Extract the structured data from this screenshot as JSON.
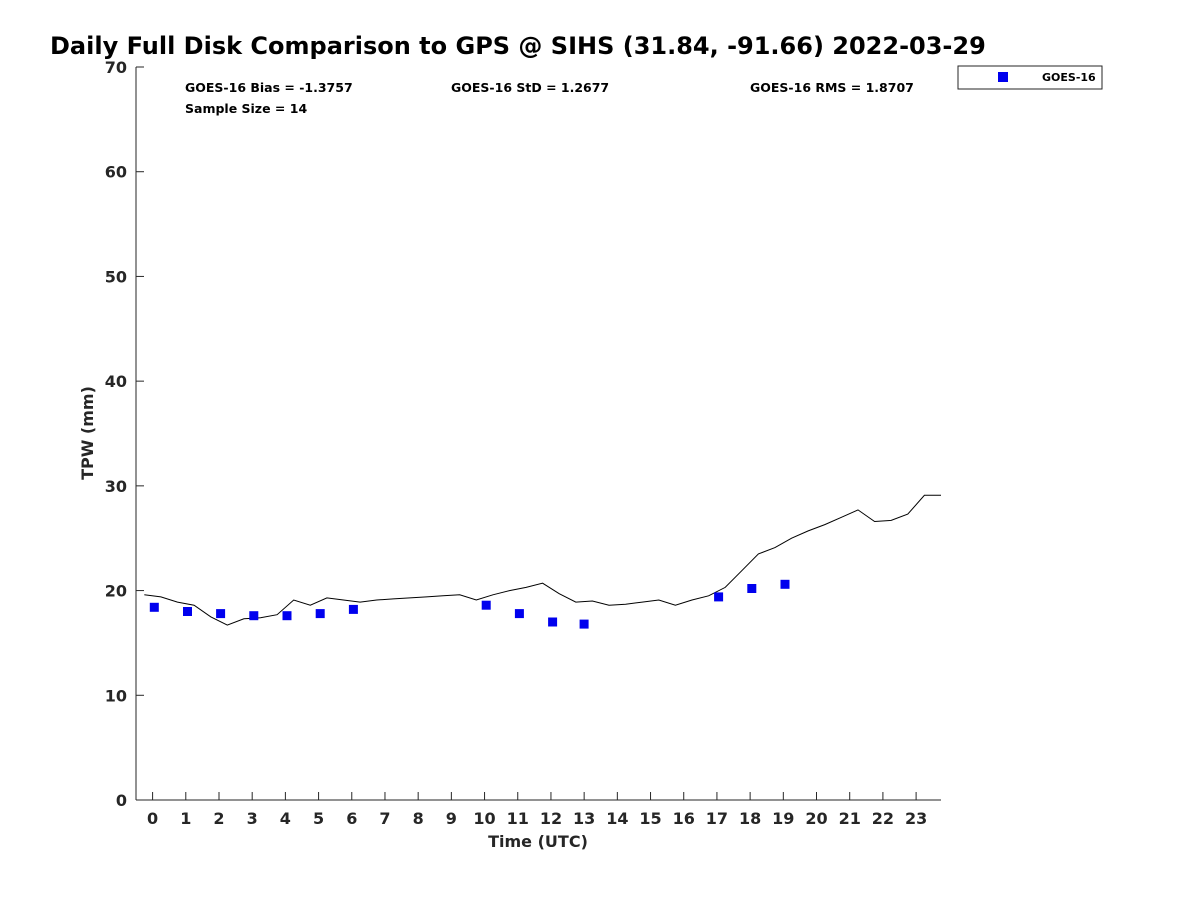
{
  "chart_data": {
    "type": "scatter",
    "title": "Daily Full Disk Comparison to GPS @ SIHS (31.84, -91.66) 2022-03-29",
    "xlabel": "Time (UTC)",
    "ylabel": "TPW (mm)",
    "xlim": [
      -0.5,
      23.75
    ],
    "ylim": [
      0,
      70
    ],
    "x_ticks": [
      "0",
      "1",
      "2",
      "3",
      "4",
      "5",
      "6",
      "7",
      "8",
      "9",
      "10",
      "11",
      "12",
      "13",
      "14",
      "15",
      "16",
      "17",
      "18",
      "19",
      "20",
      "21",
      "22",
      "23"
    ],
    "y_ticks": [
      "0",
      "10",
      "20",
      "30",
      "40",
      "50",
      "60",
      "70"
    ],
    "grid": false,
    "legend_position": "top-right",
    "stats": {
      "bias": "GOES-16 Bias = -1.3757",
      "std": "GOES-16 StD = 1.2677",
      "rms": "GOES-16 RMS = 1.8707",
      "sample": "Sample Size = 14"
    },
    "series": [
      {
        "name": "GOES-16",
        "kind": "scatter",
        "marker": "square",
        "color": "#0000ee",
        "x": [
          0.05,
          1.05,
          2.05,
          3.05,
          4.05,
          5.05,
          6.05,
          10.05,
          11.05,
          12.05,
          13.0,
          17.05,
          18.05,
          19.05
        ],
        "y": [
          18.4,
          18.0,
          17.8,
          17.6,
          17.6,
          17.8,
          18.2,
          18.6,
          17.8,
          17.0,
          16.8,
          19.4,
          20.2,
          20.6
        ]
      },
      {
        "kind": "line",
        "color": "#000000",
        "x": [
          -0.25,
          0.25,
          0.75,
          1.25,
          1.75,
          2.25,
          2.75,
          3.25,
          3.75,
          4.25,
          4.75,
          5.25,
          5.75,
          6.25,
          6.75,
          7.25,
          7.75,
          8.25,
          8.75,
          9.25,
          9.75,
          10.25,
          10.75,
          11.25,
          11.75,
          12.25,
          12.75,
          13.25,
          13.75,
          14.25,
          14.75,
          15.25,
          15.75,
          16.25,
          16.75,
          17.25,
          17.75,
          18.25,
          18.75,
          19.25,
          19.75,
          20.25,
          20.75,
          21.25,
          21.75,
          22.25,
          22.75,
          23.25,
          23.75
        ],
        "y": [
          19.6,
          19.4,
          18.9,
          18.6,
          17.5,
          16.7,
          17.3,
          17.4,
          17.7,
          19.1,
          18.6,
          19.3,
          19.1,
          18.9,
          19.1,
          19.2,
          19.3,
          19.4,
          19.5,
          19.6,
          19.1,
          19.6,
          20.0,
          20.3,
          20.7,
          19.7,
          18.9,
          19.0,
          18.6,
          18.7,
          18.9,
          19.1,
          18.6,
          19.1,
          19.5,
          20.3,
          21.9,
          23.5,
          24.1,
          25.0,
          25.7,
          26.3,
          27.0,
          27.7,
          26.6,
          26.7,
          27.3,
          29.1,
          29.1
        ]
      }
    ]
  }
}
